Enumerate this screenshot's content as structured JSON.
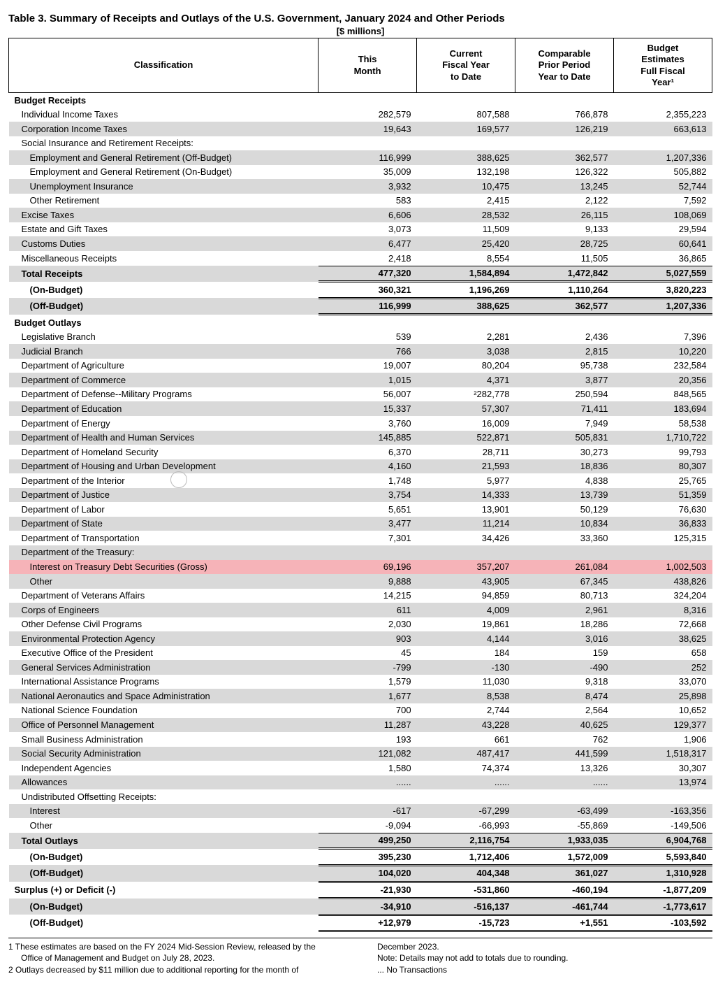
{
  "title": "Table 3. Summary of Receipts and Outlays of the U.S. Government, January 2024 and Other Periods",
  "units": "[$ millions]",
  "headers": {
    "c0": "Classification",
    "c1": "This\nMonth",
    "c2": "Current\nFiscal Year\nto Date",
    "c3": "Comparable\nPrior Period\nYear to Date",
    "c4": "Budget\nEstimates\nFull Fiscal\nYear¹"
  },
  "sections": {
    "receipts": "Budget Receipts",
    "outlays": "Budget Outlays"
  },
  "rows": [
    {
      "sec": "receipts_hdr"
    },
    {
      "l": "Individual Income Taxes",
      "i": 1,
      "v": [
        "282,579",
        "807,588",
        "766,878",
        "2,355,223"
      ]
    },
    {
      "l": "Corporation Income Taxes",
      "i": 1,
      "v": [
        "19,643",
        "169,577",
        "126,219",
        "663,613"
      ],
      "sh": 1
    },
    {
      "l": "Social Insurance and Retirement Receipts:",
      "i": 1,
      "v": [
        "",
        "",
        "",
        ""
      ]
    },
    {
      "l": "Employment and General Retirement (Off-Budget)",
      "i": 2,
      "v": [
        "116,999",
        "388,625",
        "362,577",
        "1,207,336"
      ],
      "sh": 1
    },
    {
      "l": "Employment and General Retirement (On-Budget)",
      "i": 2,
      "v": [
        "35,009",
        "132,198",
        "126,322",
        "505,882"
      ]
    },
    {
      "l": "Unemployment Insurance",
      "i": 2,
      "v": [
        "3,932",
        "10,475",
        "13,245",
        "52,744"
      ],
      "sh": 1
    },
    {
      "l": "Other Retirement",
      "i": 2,
      "v": [
        "583",
        "2,415",
        "2,122",
        "7,592"
      ]
    },
    {
      "l": "Excise Taxes",
      "i": 1,
      "v": [
        "6,606",
        "28,532",
        "26,115",
        "108,069"
      ],
      "sh": 1
    },
    {
      "l": "Estate and Gift Taxes",
      "i": 1,
      "v": [
        "3,073",
        "11,509",
        "9,133",
        "29,594"
      ]
    },
    {
      "l": "Customs Duties",
      "i": 1,
      "v": [
        "6,477",
        "25,420",
        "28,725",
        "60,641"
      ],
      "sh": 1
    },
    {
      "l": "Miscellaneous Receipts",
      "i": 1,
      "v": [
        "2,418",
        "8,554",
        "11,505",
        "36,865"
      ]
    },
    {
      "l": "Total Receipts",
      "i": 1,
      "v": [
        "477,320",
        "1,584,894",
        "1,472,842",
        "5,027,559"
      ],
      "sh": 1,
      "b": 1,
      "rt": 1
    },
    {
      "l": "(On-Budget)",
      "i": 2,
      "v": [
        "360,321",
        "1,196,269",
        "1,110,264",
        "3,820,223"
      ],
      "b": 1,
      "rd": 1
    },
    {
      "l": "(Off-Budget)",
      "i": 2,
      "v": [
        "116,999",
        "388,625",
        "362,577",
        "1,207,336"
      ],
      "sh": 1,
      "b": 1,
      "rd": 1,
      "rbd": 1
    },
    {
      "sec": "outlays_hdr"
    },
    {
      "l": "Legislative Branch",
      "i": 1,
      "v": [
        "539",
        "2,281",
        "2,436",
        "7,396"
      ]
    },
    {
      "l": "Judicial Branch",
      "i": 1,
      "v": [
        "766",
        "3,038",
        "2,815",
        "10,220"
      ],
      "sh": 1
    },
    {
      "l": "Department of Agriculture",
      "i": 1,
      "v": [
        "19,007",
        "80,204",
        "95,738",
        "232,584"
      ]
    },
    {
      "l": "Department of Commerce",
      "i": 1,
      "v": [
        "1,015",
        "4,371",
        "3,877",
        "20,356"
      ],
      "sh": 1
    },
    {
      "l": "Department of Defense--Military Programs",
      "i": 1,
      "v": [
        "56,007",
        "²282,778",
        "250,594",
        "848,565"
      ]
    },
    {
      "l": "Department of Education",
      "i": 1,
      "v": [
        "15,337",
        "57,307",
        "71,411",
        "183,694"
      ],
      "sh": 1
    },
    {
      "l": "Department of Energy",
      "i": 1,
      "v": [
        "3,760",
        "16,009",
        "7,949",
        "58,538"
      ]
    },
    {
      "l": "Department of Health and Human Services",
      "i": 1,
      "v": [
        "145,885",
        "522,871",
        "505,831",
        "1,710,722"
      ],
      "sh": 1
    },
    {
      "l": "Department of Homeland Security",
      "i": 1,
      "v": [
        "6,370",
        "28,711",
        "30,273",
        "99,793"
      ]
    },
    {
      "l": "Department of Housing and Urban Development",
      "i": 1,
      "v": [
        "4,160",
        "21,593",
        "18,836",
        "80,307"
      ],
      "sh": 1
    },
    {
      "l": "Department of the Interior",
      "i": 1,
      "v": [
        "1,748",
        "5,977",
        "4,838",
        "25,765"
      ]
    },
    {
      "l": "Department of Justice",
      "i": 1,
      "v": [
        "3,754",
        "14,333",
        "13,739",
        "51,359"
      ],
      "sh": 1
    },
    {
      "l": "Department of Labor",
      "i": 1,
      "v": [
        "5,651",
        "13,901",
        "50,129",
        "76,630"
      ]
    },
    {
      "l": "Department of State",
      "i": 1,
      "v": [
        "3,477",
        "11,214",
        "10,834",
        "36,833"
      ],
      "sh": 1
    },
    {
      "l": "Department of Transportation",
      "i": 1,
      "v": [
        "7,301",
        "34,426",
        "33,360",
        "125,315"
      ]
    },
    {
      "l": "Department of the Treasury:",
      "i": 1,
      "v": [
        "",
        "",
        "",
        ""
      ],
      "sh": 1
    },
    {
      "l": "Interest on Treasury Debt Securities (Gross)",
      "i": 2,
      "v": [
        "69,196",
        "357,207",
        "261,084",
        "1,002,503"
      ],
      "hl": 1
    },
    {
      "l": "Other",
      "i": 2,
      "v": [
        "9,888",
        "43,905",
        "67,345",
        "438,826"
      ],
      "sh": 1
    },
    {
      "l": "Department of Veterans Affairs",
      "i": 1,
      "v": [
        "14,215",
        "94,859",
        "80,713",
        "324,204"
      ]
    },
    {
      "l": "Corps of Engineers",
      "i": 1,
      "v": [
        "611",
        "4,009",
        "2,961",
        "8,316"
      ],
      "sh": 1
    },
    {
      "l": "Other Defense Civil Programs",
      "i": 1,
      "v": [
        "2,030",
        "19,861",
        "18,286",
        "72,668"
      ]
    },
    {
      "l": "Environmental Protection Agency",
      "i": 1,
      "v": [
        "903",
        "4,144",
        "3,016",
        "38,625"
      ],
      "sh": 1
    },
    {
      "l": "Executive Office of the President",
      "i": 1,
      "v": [
        "45",
        "184",
        "159",
        "658"
      ]
    },
    {
      "l": "General Services Administration",
      "i": 1,
      "v": [
        "-799",
        "-130",
        "-490",
        "252"
      ],
      "sh": 1
    },
    {
      "l": "International Assistance Programs",
      "i": 1,
      "v": [
        "1,579",
        "11,030",
        "9,318",
        "33,070"
      ]
    },
    {
      "l": "National Aeronautics and Space Administration",
      "i": 1,
      "v": [
        "1,677",
        "8,538",
        "8,474",
        "25,898"
      ],
      "sh": 1
    },
    {
      "l": "National Science Foundation",
      "i": 1,
      "v": [
        "700",
        "2,744",
        "2,564",
        "10,652"
      ]
    },
    {
      "l": "Office of Personnel Management",
      "i": 1,
      "v": [
        "11,287",
        "43,228",
        "40,625",
        "129,377"
      ],
      "sh": 1
    },
    {
      "l": "Small Business Administration",
      "i": 1,
      "v": [
        "193",
        "661",
        "762",
        "1,906"
      ]
    },
    {
      "l": "Social Security Administration",
      "i": 1,
      "v": [
        "121,082",
        "487,417",
        "441,599",
        "1,518,317"
      ],
      "sh": 1
    },
    {
      "l": "Independent Agencies",
      "i": 1,
      "v": [
        "1,580",
        "74,374",
        "13,326",
        "30,307"
      ]
    },
    {
      "l": "Allowances",
      "i": 1,
      "v": [
        "......",
        "......",
        "......",
        "13,974"
      ],
      "sh": 1
    },
    {
      "l": "Undistributed Offsetting Receipts:",
      "i": 1,
      "v": [
        "",
        "",
        "",
        ""
      ]
    },
    {
      "l": "Interest",
      "i": 2,
      "v": [
        "-617",
        "-67,299",
        "-63,499",
        "-163,356"
      ],
      "sh": 1
    },
    {
      "l": "Other",
      "i": 2,
      "v": [
        "-9,094",
        "-66,993",
        "-55,869",
        "-149,506"
      ]
    },
    {
      "l": "Total Outlays",
      "i": 1,
      "v": [
        "499,250",
        "2,116,754",
        "1,933,035",
        "6,904,768"
      ],
      "sh": 1,
      "b": 1,
      "rt": 1
    },
    {
      "l": "(On-Budget)",
      "i": 2,
      "v": [
        "395,230",
        "1,712,406",
        "1,572,009",
        "5,593,840"
      ],
      "b": 1,
      "rd": 1
    },
    {
      "l": "(Off-Budget)",
      "i": 2,
      "v": [
        "104,020",
        "404,348",
        "361,027",
        "1,310,928"
      ],
      "sh": 1,
      "b": 1,
      "rd": 1
    },
    {
      "l": "Surplus (+) or Deficit (-)",
      "i": 0,
      "v": [
        "-21,930",
        "-531,860",
        "-460,194",
        "-1,877,209"
      ],
      "b": 1,
      "rd": 1
    },
    {
      "l": "(On-Budget)",
      "i": 2,
      "v": [
        "-34,910",
        "-516,137",
        "-461,744",
        "-1,773,617"
      ],
      "sh": 1,
      "b": 1,
      "rd": 1
    },
    {
      "l": "(Off-Budget)",
      "i": 2,
      "v": [
        "+12,979",
        "-15,723",
        "+1,551",
        "-103,592"
      ],
      "b": 1,
      "rd": 1,
      "rbd": 1
    }
  ],
  "footnotes": {
    "left1": "1 These estimates are based on the FY 2024 Mid-Session Review, released by the",
    "left1b": "Office of Management and Budget on July 28, 2023.",
    "left2": "2 Outlays decreased by $11 million due to additional reporting for the month of",
    "right1": "December 2023.",
    "right2": "Note: Details may not add to totals due to rounding.",
    "right3": "... No Transactions"
  }
}
